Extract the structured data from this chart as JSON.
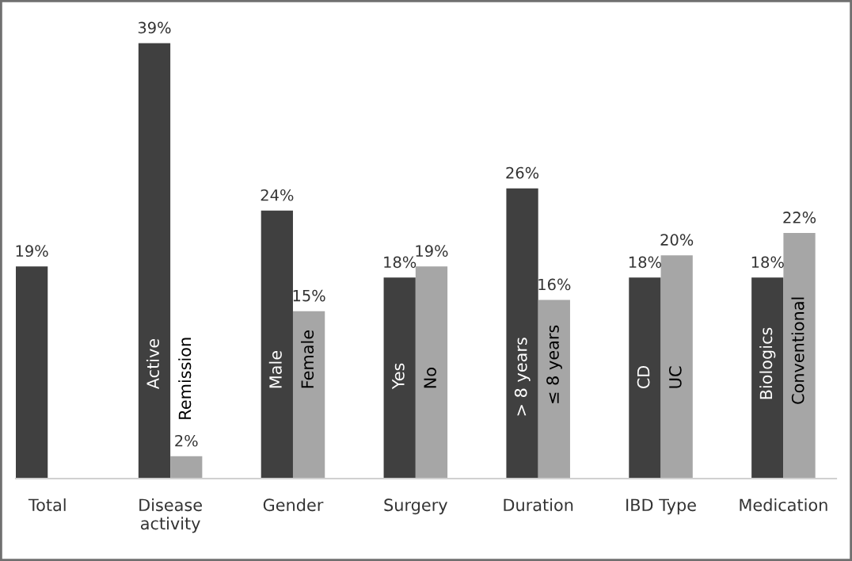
{
  "chart_data": {
    "type": "bar",
    "categories": [
      "Total",
      "Disease\nactivity",
      "Gender",
      "Surgery",
      "Duration",
      "IBD Type",
      "Medication"
    ],
    "series": [
      {
        "color": "#404040",
        "values": [
          19,
          39,
          24,
          18,
          26,
          18,
          18
        ],
        "value_labels": [
          "19%",
          "39%",
          "24%",
          "18%",
          "26%",
          "18%",
          "18%"
        ]
      },
      {
        "color": "#a6a6a6",
        "values": [
          null,
          2,
          15,
          19,
          16,
          20,
          22
        ],
        "value_labels": [
          null,
          "2%",
          "15%",
          "19%",
          "16%",
          "20%",
          "22%"
        ]
      }
    ],
    "grid": false,
    "annotations": [
      {
        "text": "Active",
        "x": "Disease\nactivity",
        "y": 8
      },
      {
        "text": "Remission",
        "x": "Disease\nactivity",
        "y": 5.2
      },
      {
        "text": "Male",
        "x": "Gender",
        "y": 8
      },
      {
        "text": "Female",
        "x": "Gender",
        "y": 8
      },
      {
        "text": "Yes",
        "x": "Surgery",
        "y": 8
      },
      {
        "text": "No",
        "x": "Surgery",
        "y": 8
      },
      {
        "text": "> 8 years",
        "x": "Duration",
        "y": 5.5
      },
      {
        "text": "≤ 8 years",
        "x": "Duration",
        "y": 6.6
      },
      {
        "text": "CD",
        "x": "IBD Type",
        "y": 8
      },
      {
        "text": "UC",
        "x": "IBD Type",
        "y": 8
      },
      {
        "text": "Biologics",
        "x": "Medication",
        "y": 7
      },
      {
        "text": "Conventional",
        "x": "Medication",
        "y": 6.6
      }
    ]
  }
}
